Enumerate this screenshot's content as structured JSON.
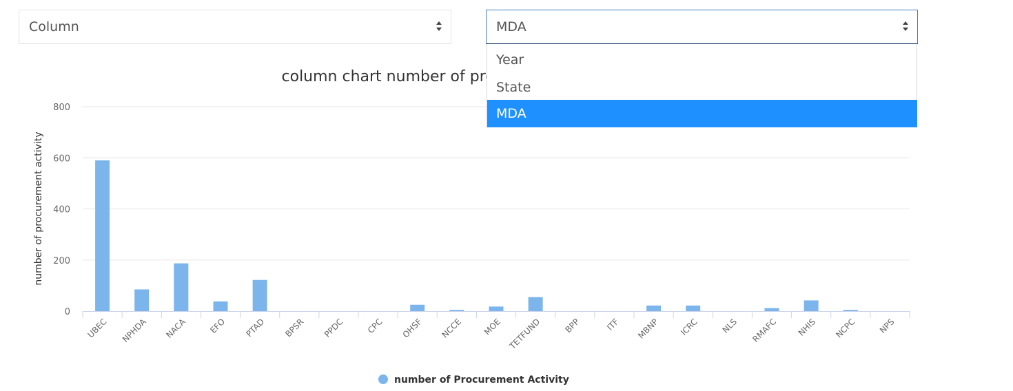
{
  "controls": {
    "chart_type_select": {
      "value": "Column"
    },
    "dimension_select": {
      "value": "MDA",
      "options": [
        "Year",
        "State",
        "MDA"
      ],
      "selected_index": 2
    }
  },
  "colors": {
    "bar": "#7cb5ec",
    "grid": "#e6e6e6",
    "axis": "#ccd6eb",
    "dropdown_selected": "#1e90ff"
  },
  "chart_data": {
    "type": "bar",
    "title": "column chart number of procurement activity",
    "xlabel": "",
    "ylabel": "number of procurement activity",
    "ylim": [
      0,
      800
    ],
    "yticks": [
      0,
      200,
      400,
      600,
      800
    ],
    "grid": true,
    "legend_position": "bottom",
    "categories": [
      "UBEC",
      "NPHDA",
      "NACA",
      "EFO",
      "PTAD",
      "BPSR",
      "PPDC",
      "CPC",
      "OHSF",
      "NCCE",
      "MOE",
      "TETFUND",
      "BPP",
      "ITF",
      "MBNP",
      "ICRC",
      "NLS",
      "RMAFC",
      "NHIS",
      "NCPC",
      "NPS"
    ],
    "series": [
      {
        "name": "number of Procurement Activity",
        "values": [
          590,
          85,
          187,
          38,
          122,
          0,
          0,
          0,
          25,
          5,
          18,
          55,
          0,
          0,
          22,
          22,
          0,
          12,
          42,
          5,
          0
        ]
      }
    ]
  }
}
